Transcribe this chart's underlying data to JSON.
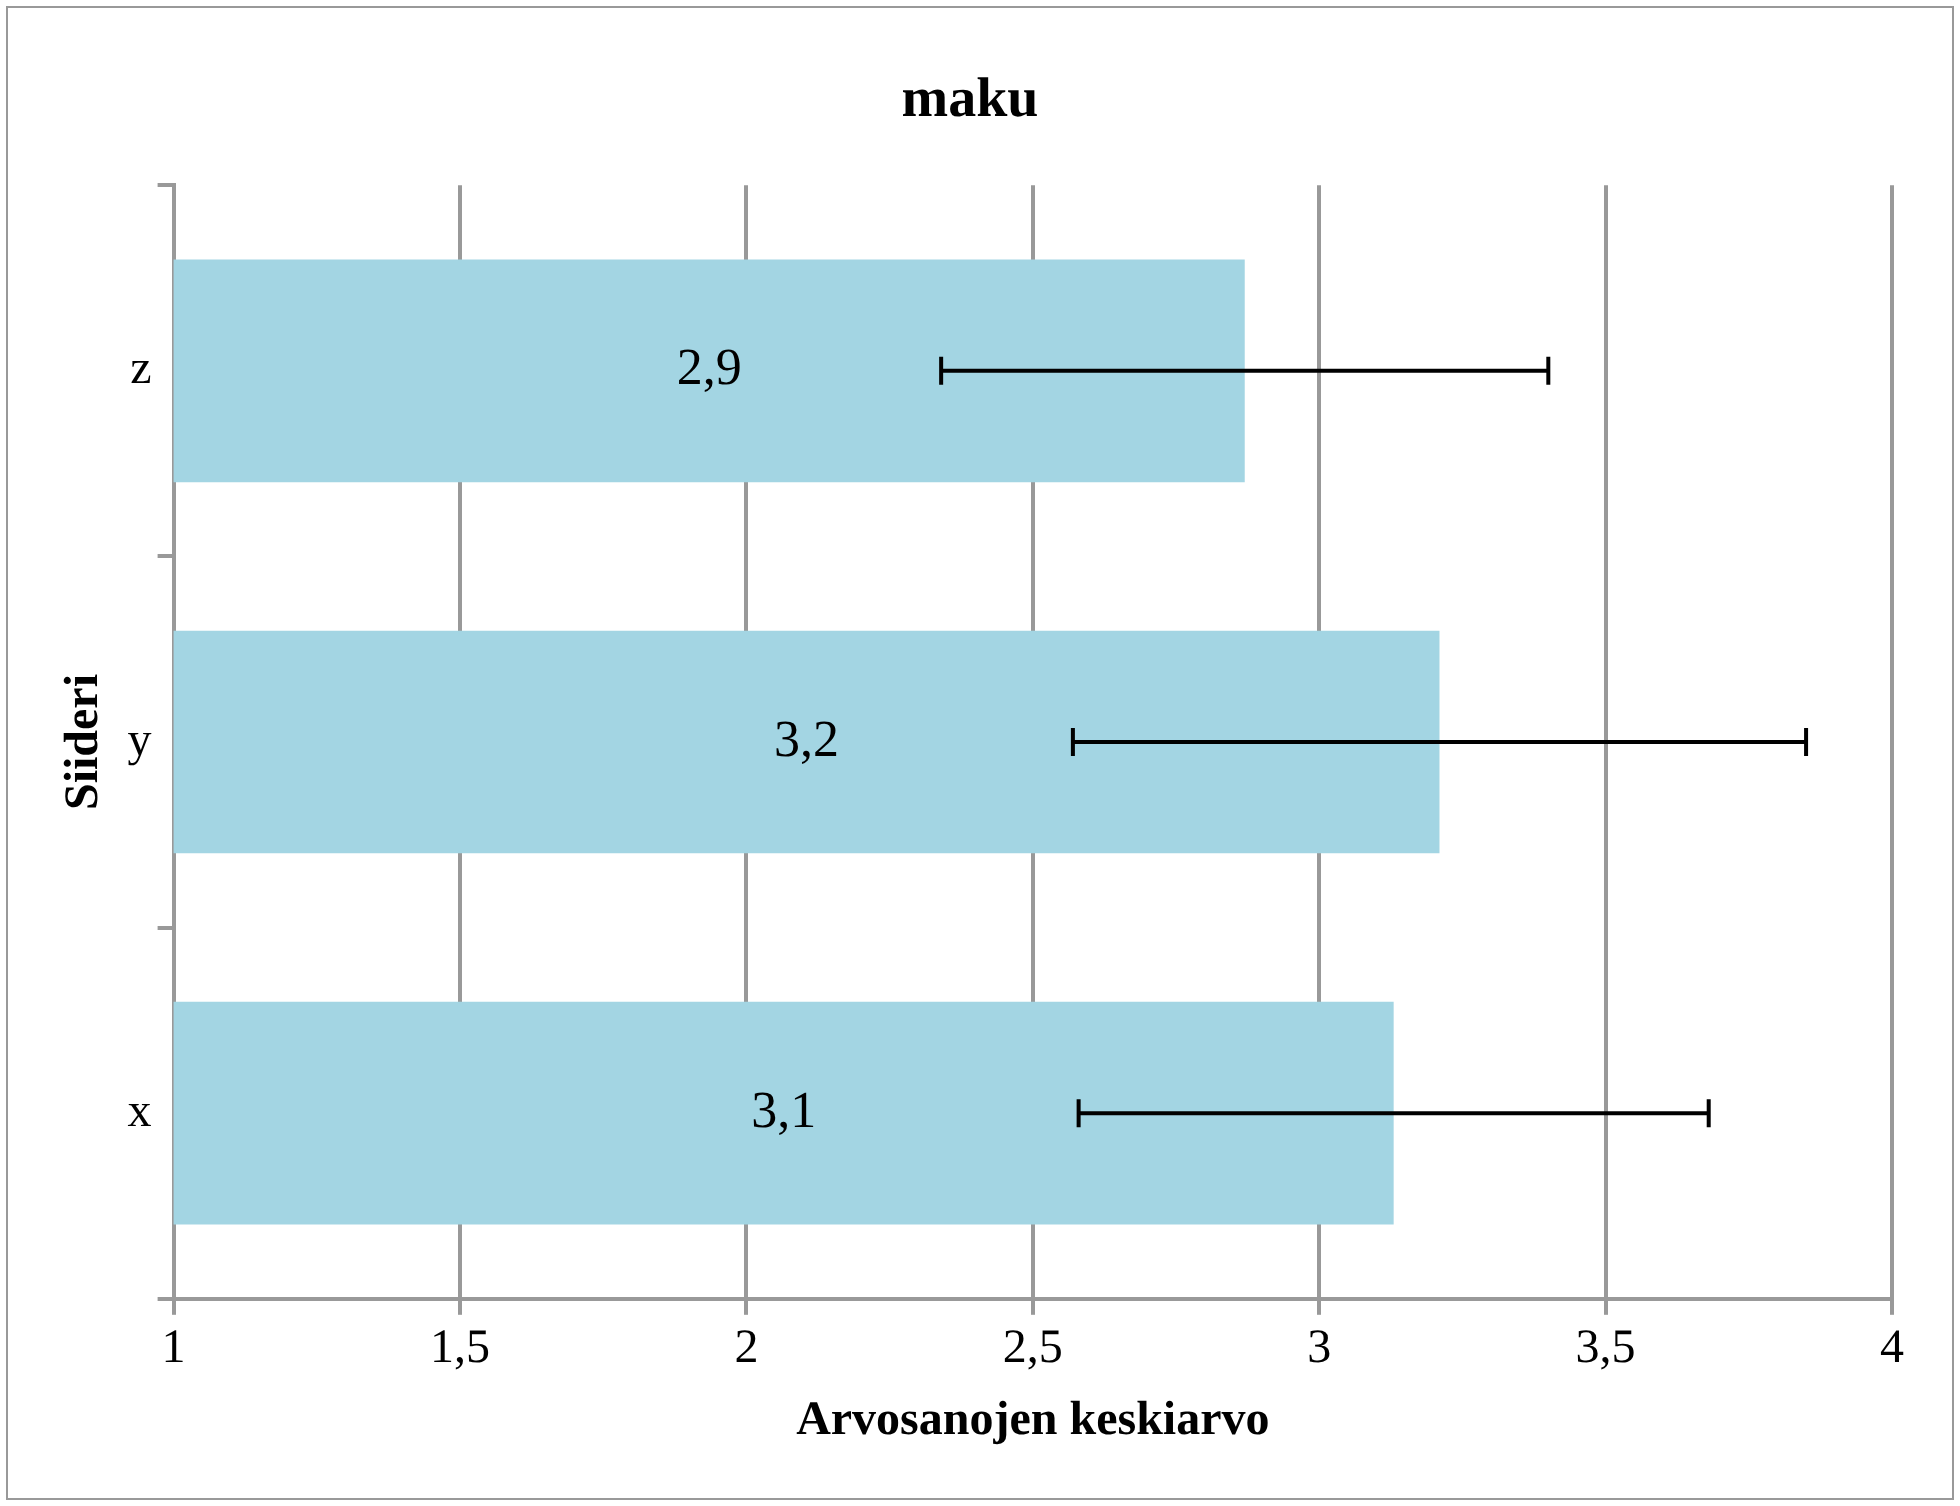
{
  "chart_data": {
    "type": "bar",
    "orientation": "horizontal",
    "title": "maku",
    "xlabel": "Arvosanojen keskiarvo",
    "ylabel": "Siideri",
    "categories": [
      "z",
      "y",
      "x"
    ],
    "values": [
      2.87,
      3.21,
      3.13
    ],
    "errors": [
      0.53,
      0.64,
      0.55
    ],
    "value_labels": [
      "2,9",
      "3,2",
      "3,1"
    ],
    "color": "#a3d5e3",
    "xlim": [
      1,
      4
    ],
    "xticks": [
      1,
      {
        "value": 1.5,
        "label": "1,5"
      },
      2,
      {
        "value": 2.5,
        "label": "2,5"
      },
      3,
      {
        "value": 3.5,
        "label": "3,5"
      },
      4
    ],
    "grid": "x",
    "legend": false
  }
}
